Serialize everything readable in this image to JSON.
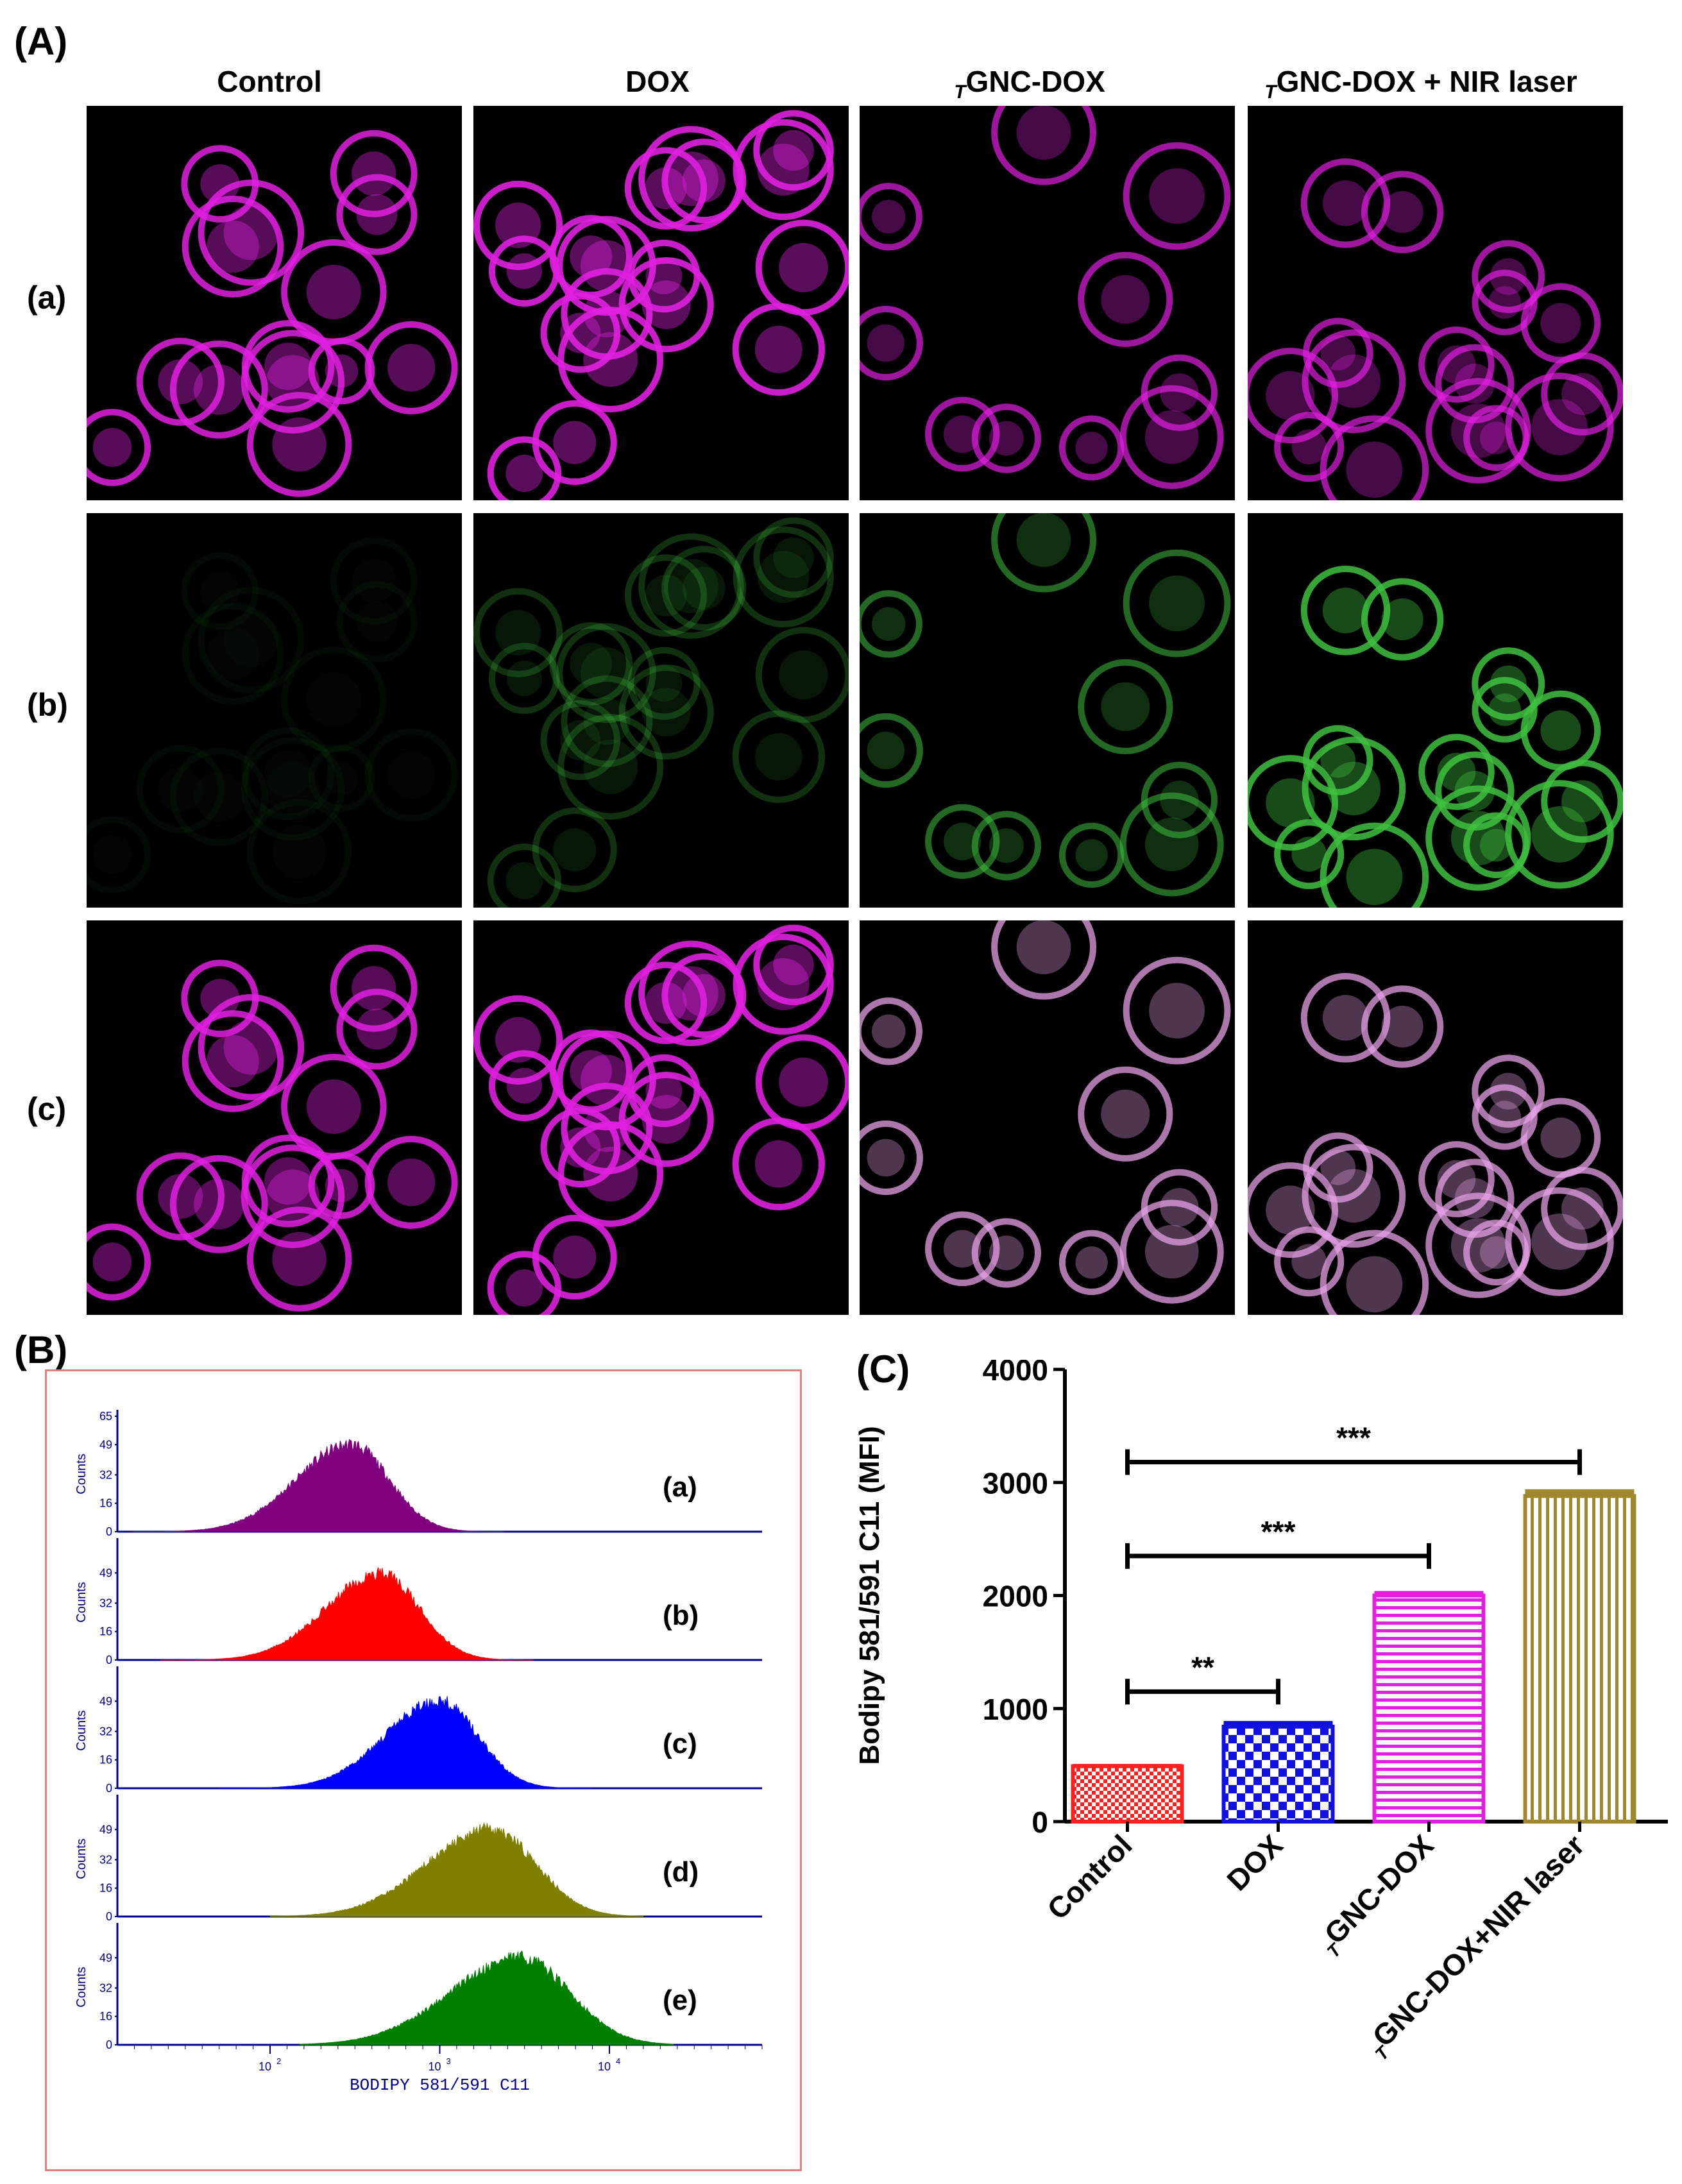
{
  "panel_A": {
    "label": "(A)",
    "columns": [
      "Control",
      "DOX",
      "GNC-DOX",
      "GNC-DOX + NIR laser"
    ],
    "column_subscript": "T",
    "rows": [
      "(a)",
      "(b)",
      "(c)"
    ],
    "colors": {
      "magenta": "#e020e0",
      "green": "#40c040",
      "background": "#000000"
    }
  },
  "panel_B": {
    "label": "(B)",
    "xlabel": "BODIPY 581/591 C11",
    "ylabel": "Counts",
    "yticks": [
      "0",
      "16",
      "32",
      "49",
      "65"
    ],
    "yticks_short": [
      "0",
      "16",
      "32",
      "49"
    ],
    "xticks": [
      "10",
      "10",
      "10"
    ],
    "xtick_exponents": [
      "2",
      "3",
      "4"
    ],
    "histograms": [
      {
        "label": "(a)",
        "color": "#800080",
        "peak": 300
      },
      {
        "label": "(b)",
        "color": "#ff0000",
        "peak": 450
      },
      {
        "label": "(c)",
        "color": "#0000ff",
        "peak": 1000
      },
      {
        "label": "(d)",
        "color": "#808000",
        "peak": 2000
      },
      {
        "label": "(e)",
        "color": "#008000",
        "peak": 3000
      }
    ]
  },
  "chart_data": {
    "type": "bar",
    "label": "(C)",
    "ylabel": "Bodipy 581/591 C11 (MFI)",
    "ylim": [
      0,
      4000
    ],
    "yticks": [
      "0",
      "1000",
      "2000",
      "3000",
      "4000"
    ],
    "categories": [
      "Control",
      "DOX",
      "GNC-DOX",
      "GNC-DOX+NIR laser"
    ],
    "category_subscript": "T",
    "values": [
      490,
      840,
      2000,
      2880
    ],
    "errors": [
      20,
      50,
      40,
      60
    ],
    "colors": [
      "#ff2020",
      "#1010e0",
      "#e020e0",
      "#a08830"
    ],
    "significance": [
      {
        "from": 0,
        "to": 1,
        "label": "**"
      },
      {
        "from": 0,
        "to": 2,
        "label": "***"
      },
      {
        "from": 0,
        "to": 3,
        "label": "***"
      }
    ]
  }
}
